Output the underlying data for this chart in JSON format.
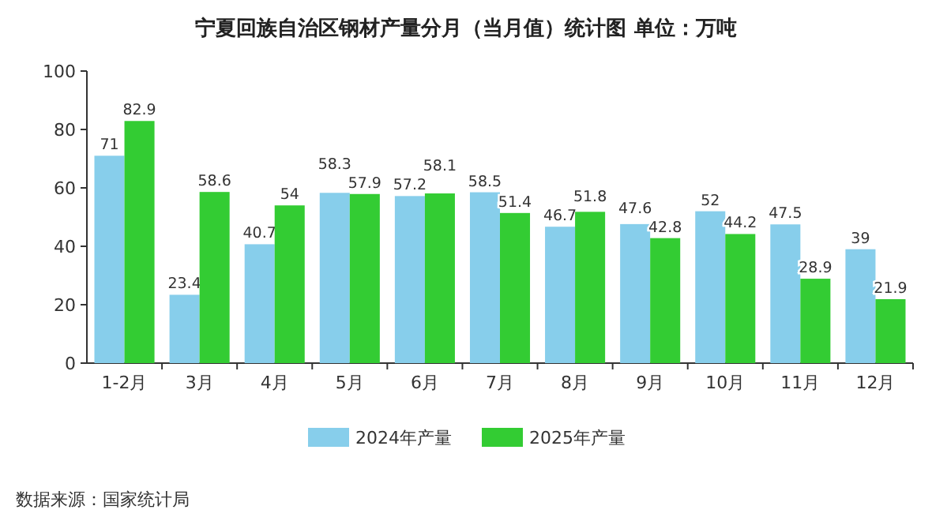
{
  "chart_data": {
    "type": "bar",
    "title": "宁夏回族自治区钢材产量分月（当月值）统计图 单位：万吨",
    "categories": [
      "1-2月",
      "3月",
      "4月",
      "5月",
      "6月",
      "7月",
      "8月",
      "9月",
      "10月",
      "11月",
      "12月"
    ],
    "series": [
      {
        "name": "2024年产量",
        "color": "#87ceeb",
        "values": [
          71,
          23.4,
          40.7,
          58.3,
          57.2,
          58.5,
          46.7,
          47.6,
          52,
          47.5,
          39
        ]
      },
      {
        "name": "2025年产量",
        "color": "#33cc33",
        "values": [
          82.9,
          58.6,
          54,
          57.9,
          58.1,
          51.4,
          51.8,
          42.8,
          44.2,
          28.9,
          21.9
        ]
      }
    ],
    "ylim": [
      0,
      100
    ],
    "yticks": [
      0,
      20,
      40,
      60,
      80,
      100
    ],
    "data_labels": true,
    "legend": "bottom",
    "annotations": [
      "数据来源：国家统计局"
    ]
  }
}
